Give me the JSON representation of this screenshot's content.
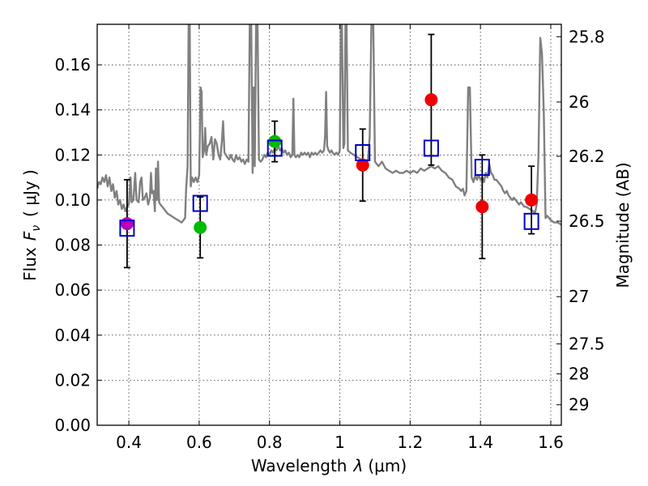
{
  "chart_data": {
    "type": "scatter",
    "xlabel": "Wavelength",
    "xlabel_symbol": "λ",
    "xlabel_unit": "(μm)",
    "ylabel": "Flux",
    "ylabel_symbol": "F",
    "ylabel_symbol_sub": "ν",
    "ylabel_unit": "( μJy )",
    "y2label": "Magnitude (AB)",
    "xlim": [
      0.31,
      1.63
    ],
    "ylim": [
      0.0,
      0.178
    ],
    "xticks": [
      0.4,
      0.6,
      0.8,
      1.0,
      1.2,
      1.4,
      1.6
    ],
    "xtick_labels": [
      "0.4",
      "0.6",
      "0.8",
      "1",
      "1.2",
      "1.4",
      "1.6"
    ],
    "yticks": [
      0.0,
      0.02,
      0.04,
      0.06,
      0.08,
      0.1,
      0.12,
      0.14,
      0.16
    ],
    "ytick_labels": [
      "0.00",
      "0.02",
      "0.04",
      "0.06",
      "0.08",
      "0.10",
      "0.12",
      "0.14",
      "0.16"
    ],
    "right_axis_ticks": [
      {
        "label": "25.8",
        "flux": 0.1725
      },
      {
        "label": "26",
        "flux": 0.1435
      },
      {
        "label": "26.2",
        "flux": 0.1194
      },
      {
        "label": "26.5",
        "flux": 0.0906
      },
      {
        "label": "27",
        "flux": 0.0571
      },
      {
        "label": "27.5",
        "flux": 0.0361
      },
      {
        "label": "28",
        "flux": 0.0228
      },
      {
        "label": "29",
        "flux": 0.0091
      }
    ],
    "grid": true,
    "observed_points": [
      {
        "x": 0.395,
        "y": 0.0895,
        "err_low": 0.0195,
        "err_high": 0.0195,
        "color": "#bb00bb"
      },
      {
        "x": 0.603,
        "y": 0.0878,
        "err_low": 0.0135,
        "err_high": 0.0135,
        "color": "#00bb00"
      },
      {
        "x": 0.815,
        "y": 0.126,
        "err_low": 0.009,
        "err_high": 0.009,
        "color": "#00bb00"
      },
      {
        "x": 1.065,
        "y": 0.1155,
        "err_low": 0.016,
        "err_high": 0.016,
        "color": "#ee0000"
      },
      {
        "x": 1.26,
        "y": 0.1445,
        "err_low": 0.029,
        "err_high": 0.029,
        "color": "#ee0000"
      },
      {
        "x": 1.405,
        "y": 0.097,
        "err_low": 0.023,
        "err_high": 0.023,
        "color": "#ee0000"
      },
      {
        "x": 1.545,
        "y": 0.1,
        "err_low": 0.015,
        "err_high": 0.015,
        "color": "#ee0000"
      }
    ],
    "model_points": [
      {
        "x": 0.395,
        "y": 0.0875
      },
      {
        "x": 0.603,
        "y": 0.0985
      },
      {
        "x": 0.815,
        "y": 0.123
      },
      {
        "x": 1.065,
        "y": 0.121
      },
      {
        "x": 1.26,
        "y": 0.123
      },
      {
        "x": 1.405,
        "y": 0.1145
      },
      {
        "x": 1.545,
        "y": 0.0905
      }
    ],
    "sed_color": "#808080",
    "model_color": "#0000cc",
    "sed_spectrum": [
      [
        0.31,
        0.105
      ],
      [
        0.315,
        0.108
      ],
      [
        0.32,
        0.107
      ],
      [
        0.325,
        0.11
      ],
      [
        0.33,
        0.108
      ],
      [
        0.335,
        0.111
      ],
      [
        0.34,
        0.106
      ],
      [
        0.345,
        0.11
      ],
      [
        0.35,
        0.104
      ],
      [
        0.355,
        0.107
      ],
      [
        0.36,
        0.101
      ],
      [
        0.365,
        0.104
      ],
      [
        0.37,
        0.098
      ],
      [
        0.375,
        0.1
      ],
      [
        0.38,
        0.096
      ],
      [
        0.385,
        0.098
      ],
      [
        0.39,
        0.095
      ],
      [
        0.395,
        0.097
      ],
      [
        0.4,
        0.098
      ],
      [
        0.405,
        0.11
      ],
      [
        0.408,
        0.099
      ],
      [
        0.413,
        0.1
      ],
      [
        0.418,
        0.112
      ],
      [
        0.422,
        0.1
      ],
      [
        0.428,
        0.099
      ],
      [
        0.432,
        0.108
      ],
      [
        0.436,
        0.11
      ],
      [
        0.44,
        0.1
      ],
      [
        0.445,
        0.101
      ],
      [
        0.45,
        0.103
      ],
      [
        0.455,
        0.098
      ],
      [
        0.46,
        0.101
      ],
      [
        0.463,
        0.112
      ],
      [
        0.466,
        0.103
      ],
      [
        0.47,
        0.104
      ],
      [
        0.474,
        0.095
      ],
      [
        0.477,
        0.114
      ],
      [
        0.48,
        0.1
      ],
      [
        0.483,
        0.117
      ],
      [
        0.486,
        0.099
      ],
      [
        0.49,
        0.098
      ],
      [
        0.5,
        0.096
      ],
      [
        0.51,
        0.094
      ],
      [
        0.52,
        0.093
      ],
      [
        0.53,
        0.092
      ],
      [
        0.54,
        0.091
      ],
      [
        0.55,
        0.09
      ],
      [
        0.56,
        0.092
      ],
      [
        0.563,
        0.105
      ],
      [
        0.567,
        0.115
      ],
      [
        0.57,
        0.18
      ],
      [
        0.573,
        0.18
      ],
      [
        0.576,
        0.106
      ],
      [
        0.58,
        0.11
      ],
      [
        0.585,
        0.108
      ],
      [
        0.59,
        0.11
      ],
      [
        0.595,
        0.108
      ],
      [
        0.6,
        0.111
      ],
      [
        0.604,
        0.15
      ],
      [
        0.607,
        0.148
      ],
      [
        0.61,
        0.119
      ],
      [
        0.614,
        0.122
      ],
      [
        0.617,
        0.132
      ],
      [
        0.62,
        0.12
      ],
      [
        0.625,
        0.124
      ],
      [
        0.63,
        0.125
      ],
      [
        0.635,
        0.128
      ],
      [
        0.64,
        0.118
      ],
      [
        0.645,
        0.127
      ],
      [
        0.65,
        0.125
      ],
      [
        0.655,
        0.12
      ],
      [
        0.66,
        0.118
      ],
      [
        0.664,
        0.125
      ],
      [
        0.668,
        0.135
      ],
      [
        0.672,
        0.121
      ],
      [
        0.676,
        0.12
      ],
      [
        0.68,
        0.119
      ],
      [
        0.685,
        0.118
      ],
      [
        0.69,
        0.12
      ],
      [
        0.695,
        0.118
      ],
      [
        0.7,
        0.117
      ],
      [
        0.705,
        0.12
      ],
      [
        0.71,
        0.118
      ],
      [
        0.715,
        0.119
      ],
      [
        0.72,
        0.117
      ],
      [
        0.725,
        0.118
      ],
      [
        0.73,
        0.116
      ],
      [
        0.735,
        0.118
      ],
      [
        0.74,
        0.117
      ],
      [
        0.744,
        0.18
      ],
      [
        0.748,
        0.18
      ],
      [
        0.752,
        0.112
      ],
      [
        0.755,
        0.15
      ],
      [
        0.758,
        0.115
      ],
      [
        0.762,
        0.18
      ],
      [
        0.766,
        0.18
      ],
      [
        0.77,
        0.118
      ],
      [
        0.775,
        0.117
      ],
      [
        0.78,
        0.118
      ],
      [
        0.785,
        0.12
      ],
      [
        0.79,
        0.119
      ],
      [
        0.795,
        0.121
      ],
      [
        0.8,
        0.12
      ],
      [
        0.805,
        0.122
      ],
      [
        0.81,
        0.121
      ],
      [
        0.815,
        0.123
      ],
      [
        0.82,
        0.122
      ],
      [
        0.825,
        0.124
      ],
      [
        0.83,
        0.122
      ],
      [
        0.835,
        0.123
      ],
      [
        0.84,
        0.121
      ],
      [
        0.845,
        0.122
      ],
      [
        0.85,
        0.12
      ],
      [
        0.855,
        0.121
      ],
      [
        0.86,
        0.119
      ],
      [
        0.865,
        0.12
      ],
      [
        0.868,
        0.145
      ],
      [
        0.871,
        0.12
      ],
      [
        0.875,
        0.119
      ],
      [
        0.88,
        0.12
      ],
      [
        0.885,
        0.119
      ],
      [
        0.89,
        0.121
      ],
      [
        0.895,
        0.12
      ],
      [
        0.9,
        0.121
      ],
      [
        0.905,
        0.12
      ],
      [
        0.91,
        0.121
      ],
      [
        0.915,
        0.119
      ],
      [
        0.92,
        0.121
      ],
      [
        0.925,
        0.12
      ],
      [
        0.93,
        0.121
      ],
      [
        0.935,
        0.12
      ],
      [
        0.94,
        0.121
      ],
      [
        0.945,
        0.122
      ],
      [
        0.95,
        0.121
      ],
      [
        0.955,
        0.122
      ],
      [
        0.958,
        0.128
      ],
      [
        0.961,
        0.148
      ],
      [
        0.964,
        0.124
      ],
      [
        0.968,
        0.122
      ],
      [
        0.972,
        0.121
      ],
      [
        0.976,
        0.122
      ],
      [
        0.98,
        0.121
      ],
      [
        0.985,
        0.12
      ],
      [
        0.99,
        0.121
      ],
      [
        0.995,
        0.12
      ],
      [
        1.0,
        0.122
      ],
      [
        1.003,
        0.18
      ],
      [
        1.006,
        0.18
      ],
      [
        1.01,
        0.123
      ],
      [
        1.013,
        0.125
      ],
      [
        1.016,
        0.18
      ],
      [
        1.019,
        0.18
      ],
      [
        1.023,
        0.122
      ],
      [
        1.03,
        0.121
      ],
      [
        1.04,
        0.12
      ],
      [
        1.05,
        0.119
      ],
      [
        1.06,
        0.118
      ],
      [
        1.07,
        0.117
      ],
      [
        1.08,
        0.118
      ],
      [
        1.085,
        0.128
      ],
      [
        1.09,
        0.18
      ],
      [
        1.095,
        0.18
      ],
      [
        1.1,
        0.117
      ],
      [
        1.11,
        0.115
      ],
      [
        1.12,
        0.117
      ],
      [
        1.13,
        0.114
      ],
      [
        1.14,
        0.113
      ],
      [
        1.15,
        0.112
      ],
      [
        1.16,
        0.113
      ],
      [
        1.17,
        0.112
      ],
      [
        1.18,
        0.112
      ],
      [
        1.19,
        0.113
      ],
      [
        1.2,
        0.112
      ],
      [
        1.21,
        0.113
      ],
      [
        1.22,
        0.112
      ],
      [
        1.23,
        0.114
      ],
      [
        1.24,
        0.113
      ],
      [
        1.25,
        0.114
      ],
      [
        1.26,
        0.115
      ],
      [
        1.27,
        0.114
      ],
      [
        1.28,
        0.115
      ],
      [
        1.29,
        0.113
      ],
      [
        1.3,
        0.112
      ],
      [
        1.31,
        0.11
      ],
      [
        1.32,
        0.109
      ],
      [
        1.33,
        0.106
      ],
      [
        1.34,
        0.105
      ],
      [
        1.345,
        0.104
      ],
      [
        1.35,
        0.105
      ],
      [
        1.355,
        0.102
      ],
      [
        1.36,
        0.104
      ],
      [
        1.365,
        0.15
      ],
      [
        1.37,
        0.15
      ],
      [
        1.375,
        0.11
      ],
      [
        1.38,
        0.108
      ],
      [
        1.385,
        0.111
      ],
      [
        1.39,
        0.109
      ],
      [
        1.395,
        0.111
      ],
      [
        1.4,
        0.109
      ],
      [
        1.405,
        0.11
      ],
      [
        1.41,
        0.108
      ],
      [
        1.415,
        0.112
      ],
      [
        1.42,
        0.11
      ],
      [
        1.425,
        0.116
      ],
      [
        1.43,
        0.112
      ],
      [
        1.435,
        0.111
      ],
      [
        1.44,
        0.109
      ],
      [
        1.445,
        0.109
      ],
      [
        1.45,
        0.108
      ],
      [
        1.455,
        0.107
      ],
      [
        1.46,
        0.106
      ],
      [
        1.465,
        0.104
      ],
      [
        1.47,
        0.103
      ],
      [
        1.475,
        0.104
      ],
      [
        1.48,
        0.102
      ],
      [
        1.485,
        0.101
      ],
      [
        1.49,
        0.1
      ],
      [
        1.495,
        0.101
      ],
      [
        1.5,
        0.1
      ],
      [
        1.505,
        0.099
      ],
      [
        1.51,
        0.098
      ],
      [
        1.515,
        0.099
      ],
      [
        1.52,
        0.098
      ],
      [
        1.525,
        0.097
      ],
      [
        1.53,
        0.097
      ],
      [
        1.54,
        0.096
      ],
      [
        1.55,
        0.095
      ],
      [
        1.555,
        0.094
      ],
      [
        1.56,
        0.098
      ],
      [
        1.565,
        0.12
      ],
      [
        1.57,
        0.172
      ],
      [
        1.575,
        0.165
      ],
      [
        1.58,
        0.14
      ],
      [
        1.585,
        0.092
      ],
      [
        1.59,
        0.093
      ],
      [
        1.6,
        0.091
      ],
      [
        1.61,
        0.09
      ],
      [
        1.62,
        0.09
      ],
      [
        1.63,
        0.089
      ]
    ]
  }
}
